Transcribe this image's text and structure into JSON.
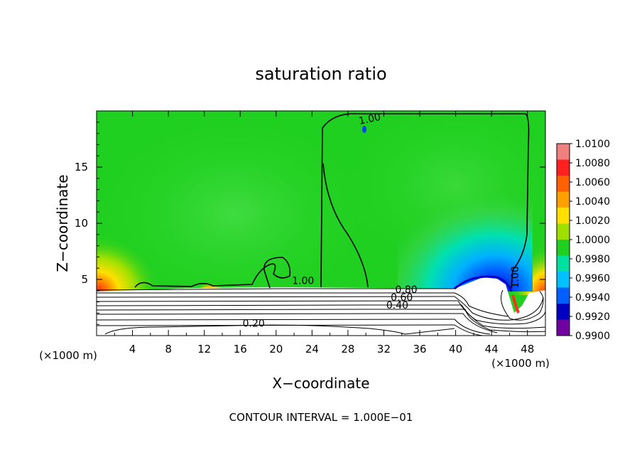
{
  "chart_data": {
    "type": "heatmap",
    "title": "saturation ratio",
    "xlabel": "X−coordinate",
    "ylabel": "Z−coordinate",
    "x_unit_left": "(×1000 m)",
    "x_unit_right": "(×1000 m)",
    "footer": "CONTOUR INTERVAL = 1.000E−01",
    "xlim": [
      0,
      50
    ],
    "ylim": [
      0,
      20
    ],
    "x_ticks": [
      4,
      8,
      12,
      16,
      20,
      24,
      28,
      32,
      36,
      40,
      44,
      48
    ],
    "y_ticks": [
      5,
      10,
      15
    ],
    "colorbar": {
      "min": 0.99,
      "max": 1.01,
      "labels": [
        "1.0100",
        "1.0080",
        "1.0060",
        "1.0040",
        "1.0020",
        "1.0000",
        "0.9980",
        "0.9960",
        "0.9940",
        "0.9920",
        "0.9900"
      ],
      "colors": [
        "#f08080",
        "#ff2020",
        "#ff6000",
        "#ffa000",
        "#ffe000",
        "#a0e000",
        "#20d020",
        "#00e0a0",
        "#00c0ff",
        "#0060ff",
        "#0000c0",
        "#7000a0"
      ]
    },
    "contour_labels": [
      {
        "text": "1.00",
        "x": 30.5,
        "z": 19.0
      },
      {
        "text": "1.00",
        "x": 23.0,
        "z": 4.6
      },
      {
        "text": "1.00",
        "x": 47.0,
        "z": 5.2
      },
      {
        "text": "0.80",
        "x": 34.5,
        "z": 3.8
      },
      {
        "text": "0.60",
        "x": 34.0,
        "z": 3.1
      },
      {
        "text": "0.40",
        "x": 33.5,
        "z": 2.4
      },
      {
        "text": "0.20",
        "x": 17.5,
        "z": 0.8
      }
    ]
  }
}
